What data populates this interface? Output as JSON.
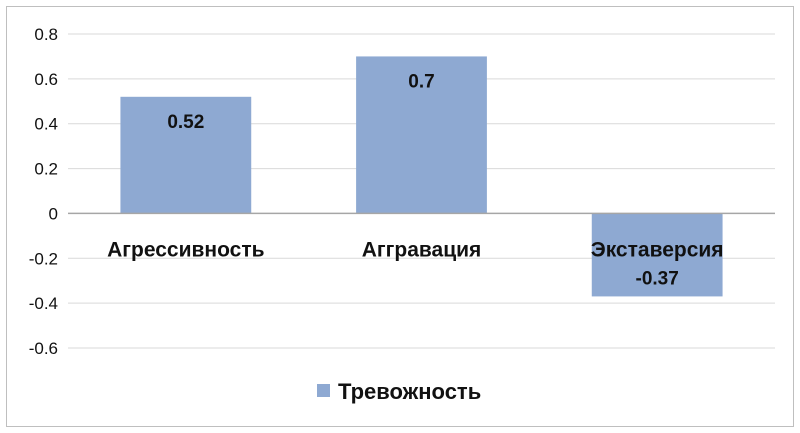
{
  "chart_data": {
    "type": "bar",
    "categories": [
      "Агрессивность",
      "Аггравация",
      "Экставерсия"
    ],
    "series": [
      {
        "name": "Тревожность",
        "values": [
          0.52,
          0.7,
          -0.37
        ]
      }
    ],
    "data_labels": [
      "0.52",
      "0.7",
      "-0.37"
    ],
    "ylim": [
      -0.6,
      0.8
    ],
    "yticks": [
      0.8,
      0.6,
      0.4,
      0.2,
      0,
      -0.2,
      -0.4,
      -0.6
    ],
    "ytick_labels": [
      "0.8",
      "0.6",
      "0.4",
      "0.2",
      "0",
      "-0.2",
      "-0.4",
      "-0.6"
    ],
    "grid": true,
    "legend": "bottom",
    "colors": {
      "bar": "#8EA9D2",
      "grid": "#d9d9d9",
      "axis": "#a6a6a6",
      "border": "#bfbfbf"
    }
  }
}
